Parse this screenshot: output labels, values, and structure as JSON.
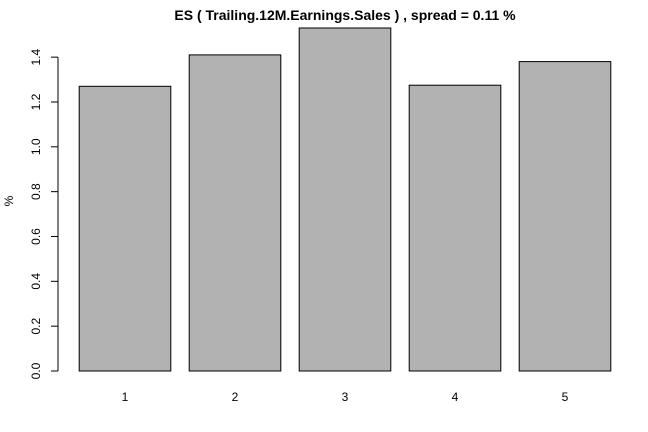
{
  "chart_data": {
    "type": "bar",
    "title": "ES ( Trailing.12M.Earnings.Sales ) , spread = 0.11 %",
    "xlabel": "",
    "ylabel": "%",
    "categories": [
      "1",
      "2",
      "3",
      "4",
      "5"
    ],
    "values": [
      1.27,
      1.41,
      1.53,
      1.275,
      1.38
    ],
    "ylim": [
      0,
      1.53
    ],
    "yticks": [
      "0.0",
      "0.2",
      "0.4",
      "0.6",
      "0.8",
      "1.0",
      "1.2",
      "1.4"
    ],
    "grid": false,
    "bar_color": "#b2b2b2"
  }
}
